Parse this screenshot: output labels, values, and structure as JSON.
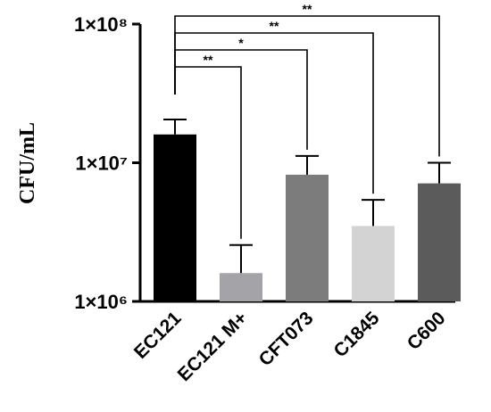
{
  "chart_data": {
    "type": "bar",
    "title": "",
    "xlabel": "",
    "ylabel": "CFU/mL",
    "yscale": "log",
    "ylim": [
      1000000,
      100000000
    ],
    "yticks": [
      {
        "value": 1000000,
        "label": "1×10⁶"
      },
      {
        "value": 10000000,
        "label": "1×10⁷"
      },
      {
        "value": 100000000,
        "label": "1×10⁸"
      }
    ],
    "categories": [
      "EC121",
      "EC121 M+",
      "CFT073",
      "C1845",
      "C600"
    ],
    "values": [
      16000000,
      1600000,
      8200000,
      3500000,
      7100000
    ],
    "error_upper": [
      20500000,
      2550000,
      11200000,
      5400000,
      10000000
    ],
    "bar_colors": [
      "#000000",
      "#a3a3a8",
      "#7c7c7c",
      "#d3d3d3",
      "#5b5b5b"
    ],
    "grid": false,
    "legend": "none",
    "significance": [
      {
        "from": "EC121",
        "to": "EC121 M+",
        "label": "**"
      },
      {
        "from": "EC121",
        "to": "CFT073",
        "label": "*"
      },
      {
        "from": "EC121",
        "to": "C1845",
        "label": "**"
      },
      {
        "from": "EC121",
        "to": "C600",
        "label": "**"
      }
    ]
  }
}
